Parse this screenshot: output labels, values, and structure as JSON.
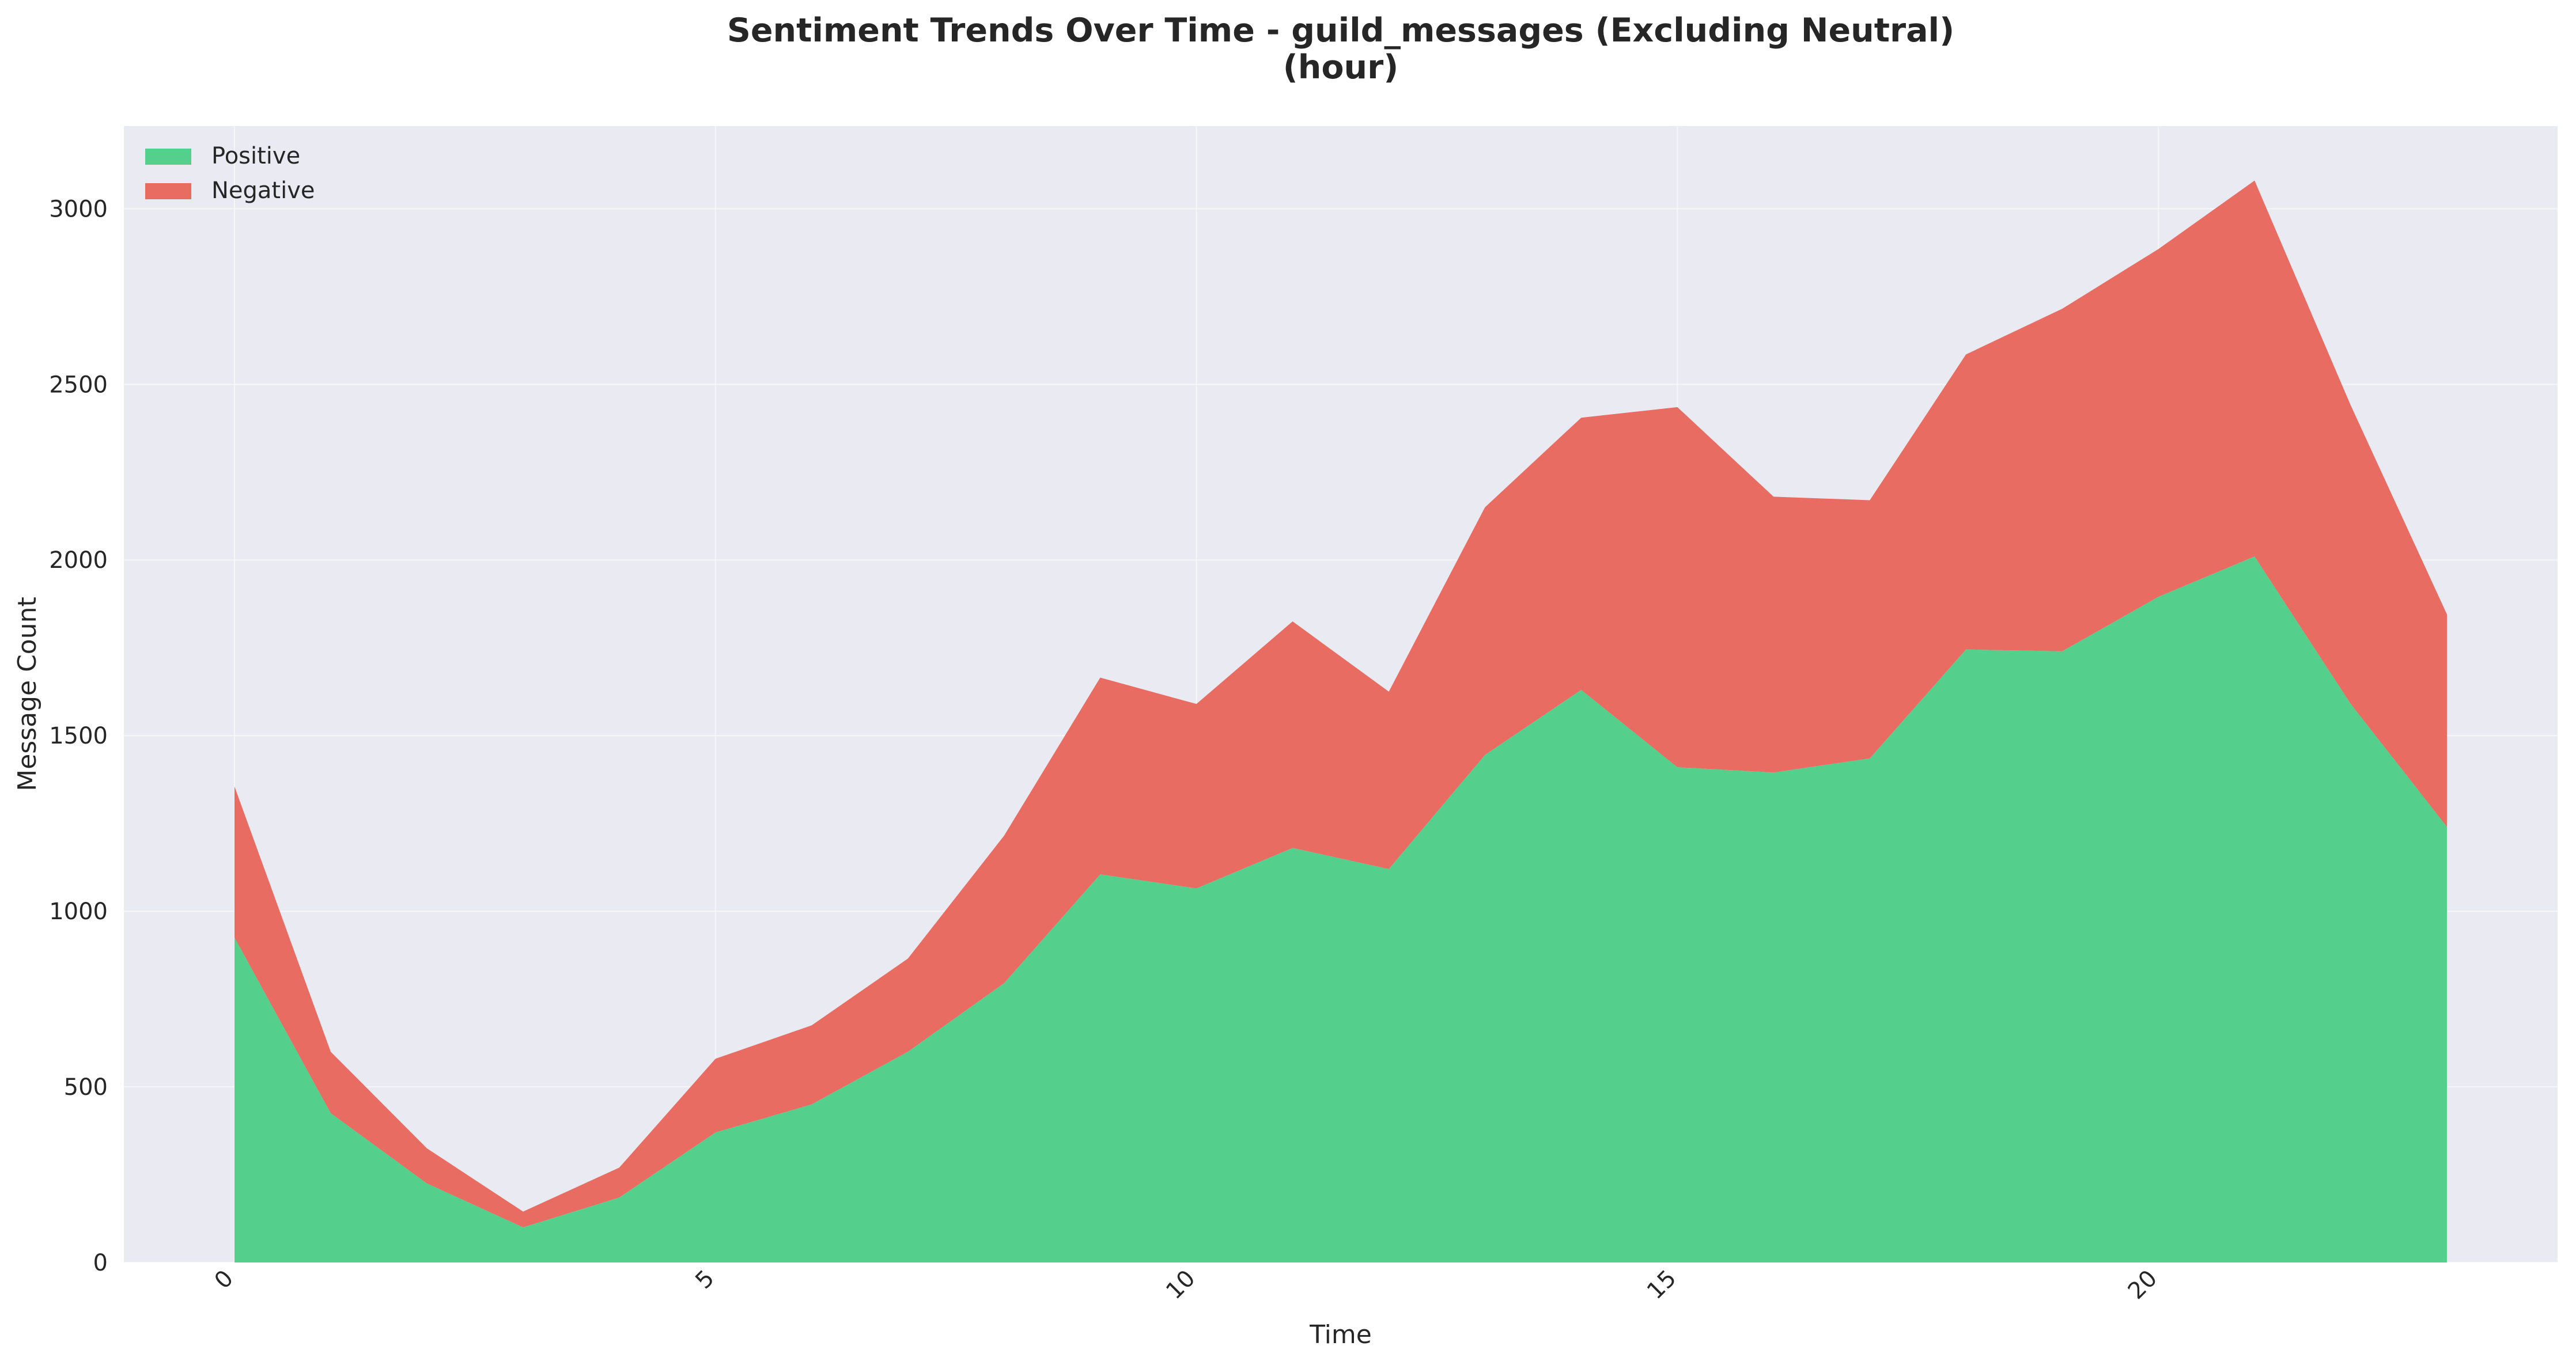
{
  "chart_data": {
    "type": "area",
    "stacked": true,
    "title_line1": "Sentiment Trends Over Time - guild_messages (Excluding Neutral)",
    "title_line2": "(hour)",
    "xlabel": "Time",
    "ylabel": "Message Count",
    "x": [
      0,
      1,
      2,
      3,
      4,
      5,
      6,
      7,
      8,
      9,
      10,
      11,
      12,
      13,
      14,
      15,
      16,
      17,
      18,
      19,
      20,
      21,
      22,
      23
    ],
    "xlim": [
      -1.15,
      24.15
    ],
    "ylim": [
      0,
      3235
    ],
    "xticks": [
      "0",
      "5",
      "10",
      "15",
      "20"
    ],
    "xtick_values": [
      0,
      5,
      10,
      15,
      20
    ],
    "yticks": [
      "0",
      "500",
      "1000",
      "1500",
      "2000",
      "2500",
      "3000"
    ],
    "ytick_values": [
      0,
      500,
      1000,
      1500,
      2000,
      2500,
      3000
    ],
    "grid": true,
    "legend_position": "top-left",
    "background_color": "#eaeaf2",
    "series": [
      {
        "name": "Positive",
        "color": "#55d08c",
        "values": [
          925,
          425,
          225,
          100,
          185,
          370,
          450,
          600,
          795,
          1105,
          1065,
          1180,
          1120,
          1445,
          1630,
          1410,
          1395,
          1435,
          1745,
          1740,
          1895,
          2010,
          1590,
          1240
        ]
      },
      {
        "name": "Negative",
        "color": "#e86c62",
        "values": [
          430,
          175,
          100,
          45,
          85,
          210,
          225,
          265,
          420,
          560,
          525,
          645,
          505,
          705,
          775,
          1025,
          785,
          735,
          840,
          975,
          990,
          1070,
          850,
          605
        ]
      }
    ]
  }
}
